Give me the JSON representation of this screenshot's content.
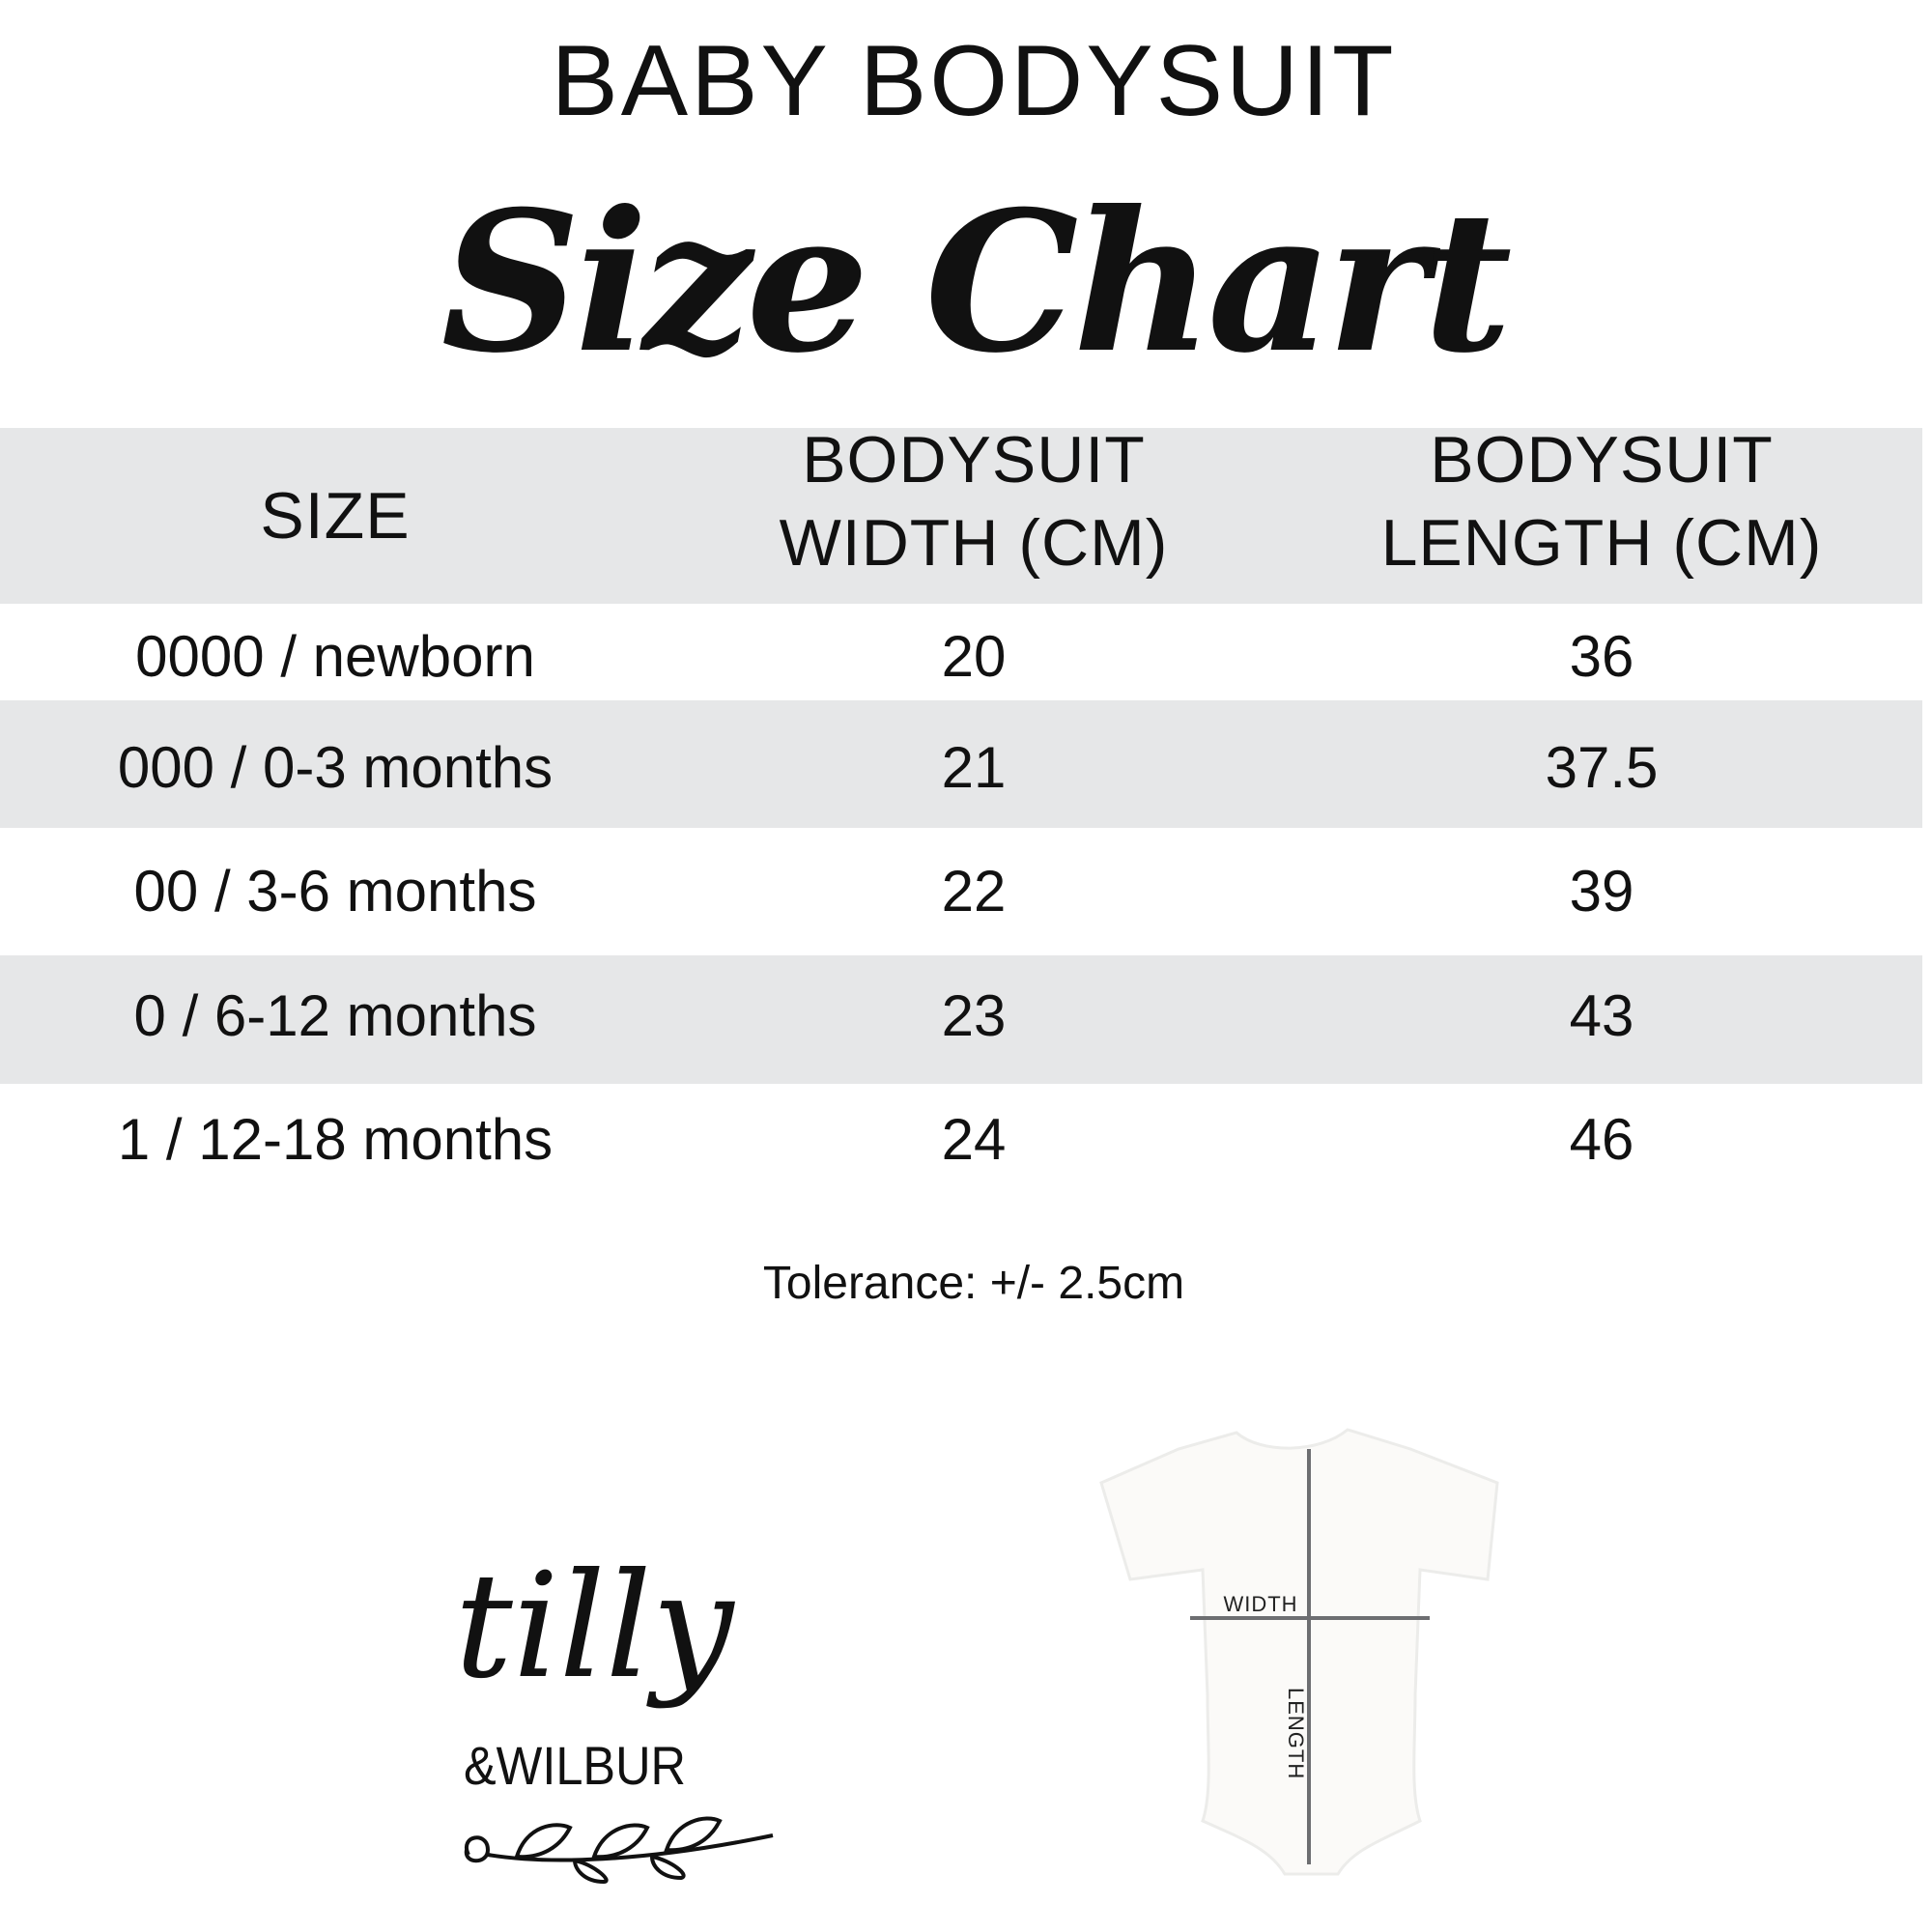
{
  "header": {
    "title": "BABY BODYSUIT",
    "subtitle": "Size Chart"
  },
  "table": {
    "columns": [
      {
        "line1": "SIZE",
        "line2": ""
      },
      {
        "line1": "BODYSUIT",
        "line2": "WIDTH (CM)"
      },
      {
        "line1": "BODYSUIT",
        "line2": "LENGTH (CM)"
      }
    ],
    "rows": [
      [
        "0000 / newborn",
        "20",
        "36"
      ],
      [
        "000 / 0-3 months",
        "21",
        "37.5"
      ],
      [
        "00 / 3-6 months",
        "22",
        "39"
      ],
      [
        "0 / 6-12 months",
        "23",
        "43"
      ],
      [
        "1 / 12-18 months",
        "24",
        "46"
      ]
    ]
  },
  "note": "Tolerance: +/- 2.5cm",
  "diagram": {
    "width_label": "WIDTH",
    "length_label": "LENGTH"
  },
  "logo": {
    "line1": "tilly",
    "line2": "&WILBUR"
  },
  "colors": {
    "band": "#e6e7e8",
    "text": "#111111",
    "measure_line": "#6d6e71"
  }
}
